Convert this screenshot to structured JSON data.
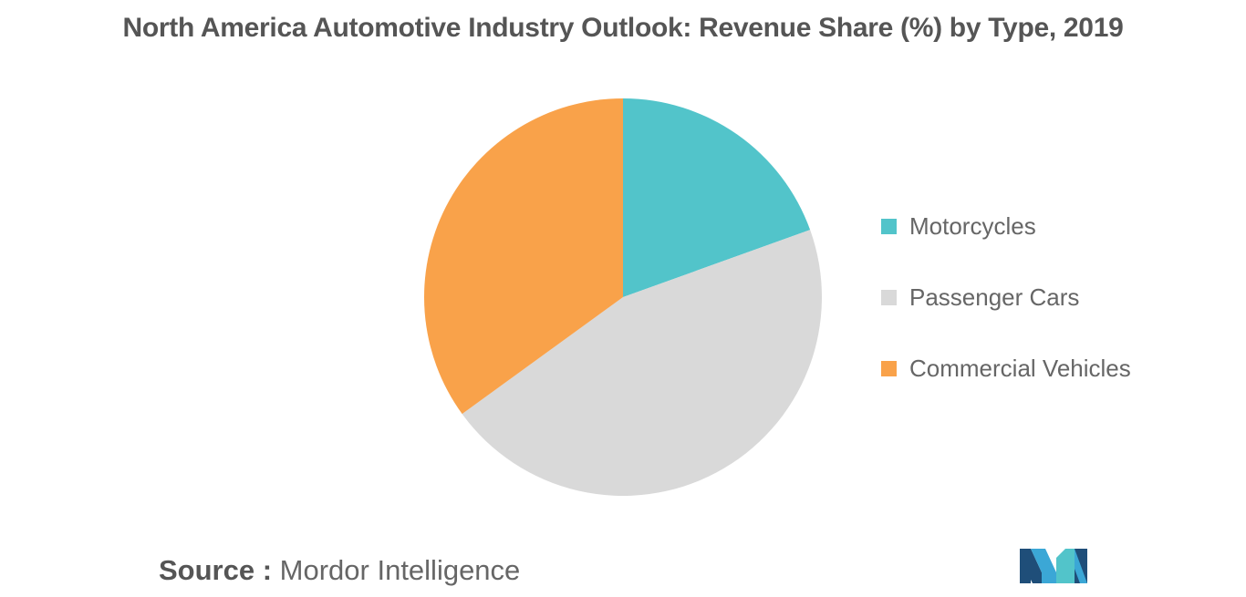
{
  "chart_data": {
    "type": "pie",
    "title": "North America Automotive Industry Outlook: Revenue Share (%) by Type, 2019",
    "categories": [
      "Motorcycles",
      "Passenger Cars",
      "Commercial Vehicles"
    ],
    "values": [
      19.5,
      45.5,
      35.0
    ],
    "colors": [
      "#52c4ca",
      "#d9d9d9",
      "#f9a24a"
    ],
    "legend_position": "right"
  },
  "source": {
    "label": "Source :",
    "value": "Mordor Intelligence"
  },
  "logo": {
    "icon": "mordor-intelligence-logo",
    "colors": [
      "#1f4e79",
      "#3ba7d6",
      "#52c4ca"
    ]
  }
}
